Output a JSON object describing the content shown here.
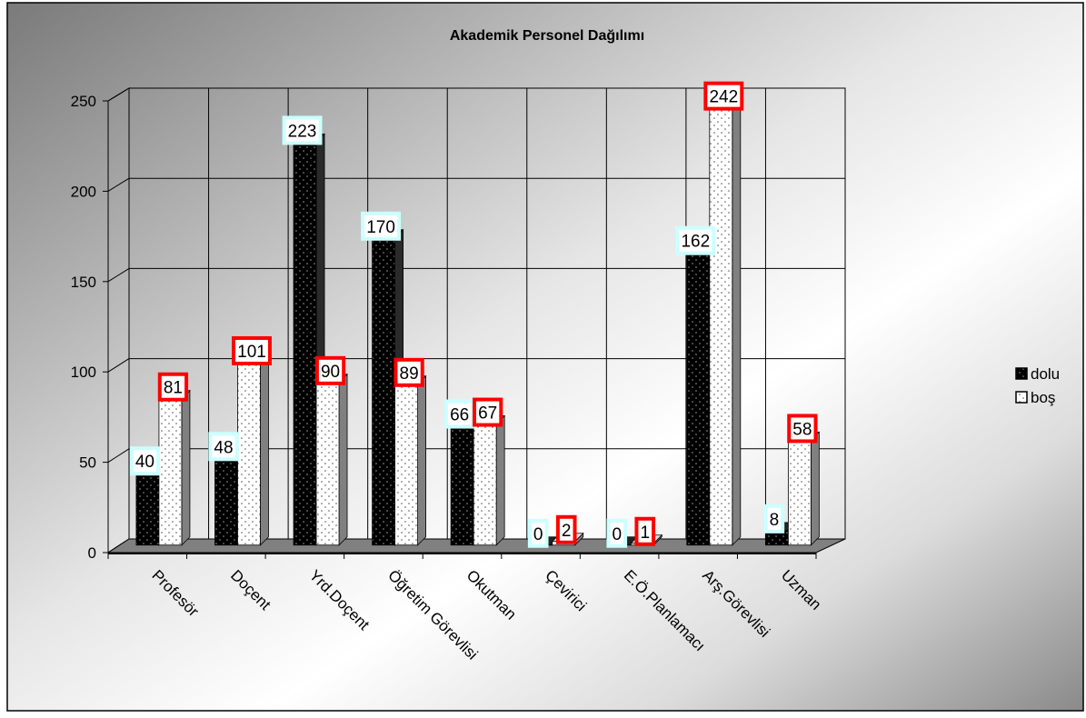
{
  "chart_data": {
    "type": "bar",
    "title": "Akademik Personel Dağılımı",
    "xlabel": "",
    "ylabel": "",
    "ylim": [
      0,
      250
    ],
    "yticks": [
      0,
      50,
      100,
      150,
      200,
      250
    ],
    "grid": true,
    "legend_position": "right",
    "categories": [
      "Profesör",
      "Doçent",
      "Yrd.Doçent",
      "Öğretim Görevlisi",
      "Okutman",
      "Çevirici",
      "E.Ö.Planlamacı",
      "Arş.Görevlisi",
      "Uzman"
    ],
    "series": [
      {
        "name": "dolu",
        "values": [
          40,
          48,
          223,
          170,
          66,
          0,
          0,
          162,
          8
        ],
        "color": "#000000",
        "label_border": "#ccffff"
      },
      {
        "name": "boş",
        "values": [
          81,
          101,
          90,
          89,
          67,
          2,
          1,
          242,
          58
        ],
        "color": "#ffffff",
        "label_border": "#ff0000"
      }
    ]
  }
}
